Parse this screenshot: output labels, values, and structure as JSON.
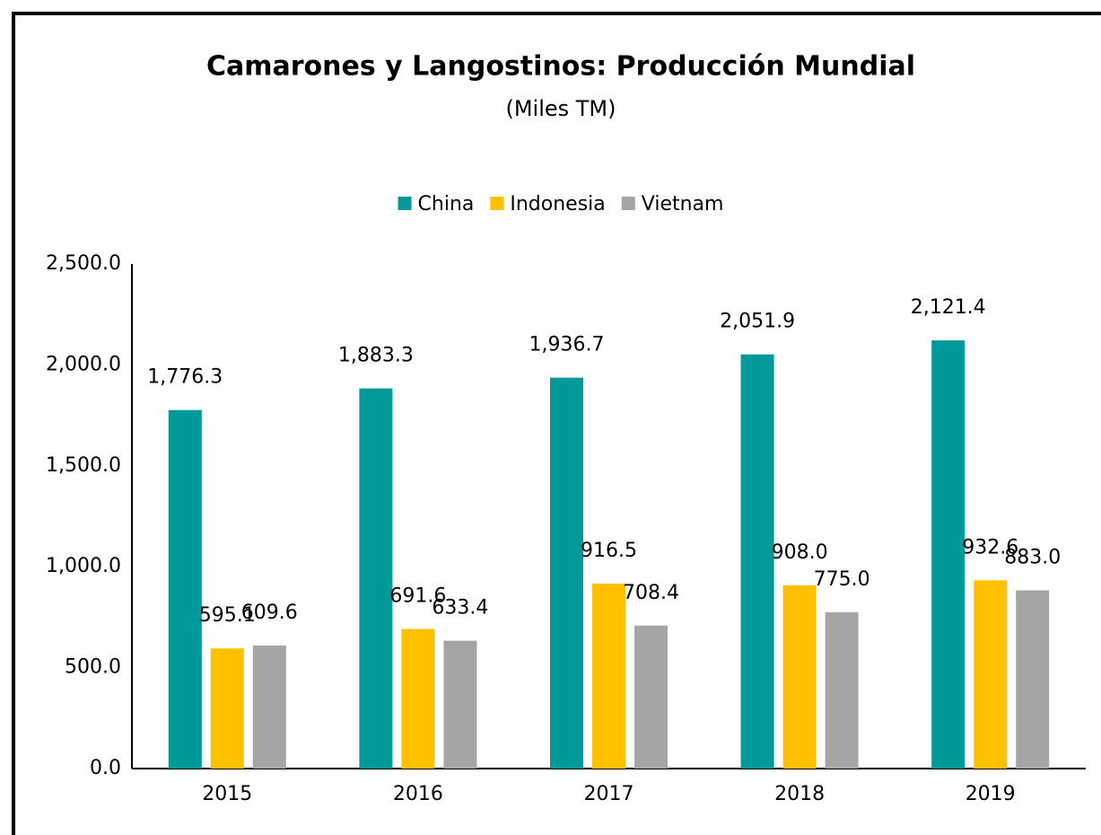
{
  "chart_data": {
    "type": "bar",
    "title": "Camarones y Langostinos: Producción Mundial",
    "subtitle": "(Miles TM)",
    "categories": [
      "2015",
      "2016",
      "2017",
      "2018",
      "2019"
    ],
    "series": [
      {
        "name": "China",
        "color": "#009999",
        "values": [
          1776.3,
          1883.3,
          1936.7,
          2051.9,
          2121.4
        ],
        "value_labels": [
          "1,776.3",
          "1,883.3",
          "1,936.7",
          "2,051.9",
          "2,121.4"
        ]
      },
      {
        "name": "Indonesia",
        "color": "#ffc000",
        "values": [
          595.1,
          691.6,
          916.5,
          908.0,
          932.6
        ],
        "value_labels": [
          "595.1",
          "691.6",
          "916.5",
          "908.0",
          "932.6"
        ]
      },
      {
        "name": "Vietnam",
        "color": "#a5a5a5",
        "values": [
          609.6,
          633.4,
          708.4,
          775.0,
          883.0
        ],
        "value_labels": [
          "609.6",
          "633.4",
          "708.4",
          "775.0",
          "883.0"
        ]
      }
    ],
    "ylim": [
      0,
      2500
    ],
    "yticks": [
      {
        "value": 0,
        "label": "0.0"
      },
      {
        "value": 500,
        "label": "500.0"
      },
      {
        "value": 1000,
        "label": "1,000.0"
      },
      {
        "value": 1500,
        "label": "1,500.0"
      },
      {
        "value": 2000,
        "label": "2,000.0"
      },
      {
        "value": 2500,
        "label": "2,500.0"
      }
    ],
    "legend": "top",
    "grid": false
  }
}
